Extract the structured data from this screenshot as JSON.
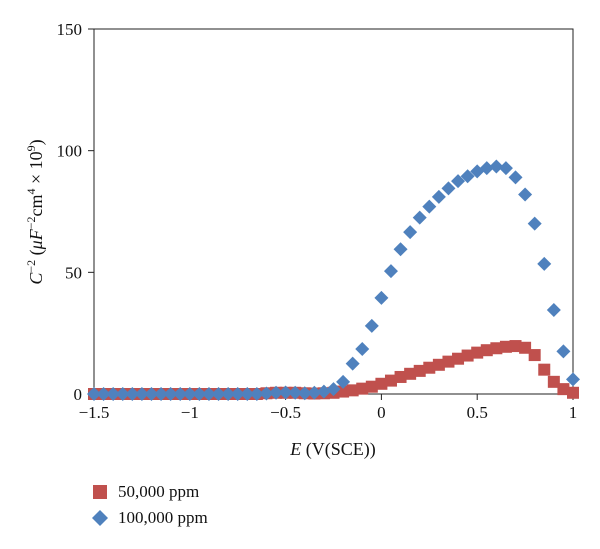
{
  "chart_data": {
    "type": "scatter",
    "title": "",
    "xlabel": "E (V(SCE))",
    "ylabel": "C^-2 (μF^-2 cm^4 × 10^9)",
    "xlim": [
      -1.5,
      1
    ],
    "ylim": [
      0,
      150
    ],
    "xticks": [
      -1.5,
      -1,
      -0.5,
      0,
      0.5,
      1
    ],
    "xtick_labels": [
      "−1.5",
      "−1",
      "−0.5",
      "0",
      "0.5",
      "1"
    ],
    "yticks": [
      0,
      50,
      100,
      150
    ],
    "ytick_labels": [
      "0",
      "50",
      "100",
      "150"
    ],
    "grid": false,
    "legend_position": "bottom-left",
    "series": [
      {
        "name": "50,000 ppm",
        "marker": "square",
        "color": "#c0504d",
        "x": [
          -1.5,
          -1.45,
          -1.4,
          -1.35,
          -1.3,
          -1.25,
          -1.2,
          -1.15,
          -1.1,
          -1.05,
          -1.0,
          -0.95,
          -0.9,
          -0.85,
          -0.8,
          -0.75,
          -0.7,
          -0.65,
          -0.6,
          -0.55,
          -0.5,
          -0.45,
          -0.4,
          -0.35,
          -0.3,
          -0.25,
          -0.2,
          -0.15,
          -0.1,
          -0.05,
          0.0,
          0.05,
          0.1,
          0.15,
          0.2,
          0.25,
          0.3,
          0.35,
          0.4,
          0.45,
          0.5,
          0.55,
          0.6,
          0.65,
          0.7,
          0.75,
          0.8,
          0.85,
          0.9,
          0.95,
          1.0
        ],
        "y": [
          0,
          0,
          0,
          0,
          0,
          0,
          0,
          0,
          0,
          0,
          0,
          0,
          0,
          0,
          0,
          0,
          0,
          0,
          0.3,
          0.5,
          0.5,
          0.5,
          0.3,
          0.2,
          0.3,
          0.5,
          1.0,
          1.5,
          2.2,
          3.0,
          4.2,
          5.5,
          7.0,
          8.3,
          9.5,
          10.8,
          12.0,
          13.3,
          14.5,
          15.8,
          17.0,
          18.0,
          18.8,
          19.4,
          19.7,
          19.0,
          16.0,
          10.0,
          5.0,
          2.0,
          0.5
        ]
      },
      {
        "name": "100,000 ppm",
        "marker": "diamond",
        "color": "#4f81bd",
        "x": [
          -1.5,
          -1.45,
          -1.4,
          -1.35,
          -1.3,
          -1.25,
          -1.2,
          -1.15,
          -1.1,
          -1.05,
          -1.0,
          -0.95,
          -0.9,
          -0.85,
          -0.8,
          -0.75,
          -0.7,
          -0.65,
          -0.6,
          -0.55,
          -0.5,
          -0.45,
          -0.4,
          -0.35,
          -0.3,
          -0.25,
          -0.2,
          -0.15,
          -0.1,
          -0.05,
          0.0,
          0.05,
          0.1,
          0.15,
          0.2,
          0.25,
          0.3,
          0.35,
          0.4,
          0.45,
          0.5,
          0.55,
          0.6,
          0.65,
          0.7,
          0.75,
          0.8,
          0.85,
          0.9,
          0.95,
          1.0
        ],
        "y": [
          0,
          0,
          0,
          0,
          0,
          0,
          0,
          0,
          0,
          0,
          0,
          0,
          0,
          0,
          0,
          0,
          0,
          0,
          0.2,
          0.5,
          0.6,
          0.5,
          0.3,
          0.5,
          1.0,
          2.0,
          5.0,
          12.5,
          18.5,
          28.0,
          39.5,
          50.5,
          59.5,
          66.5,
          72.5,
          77.0,
          81.0,
          84.5,
          87.5,
          89.5,
          91.5,
          92.8,
          93.5,
          92.8,
          89.0,
          82.0,
          70.0,
          53.5,
          34.5,
          17.5,
          6.0
        ]
      }
    ]
  }
}
